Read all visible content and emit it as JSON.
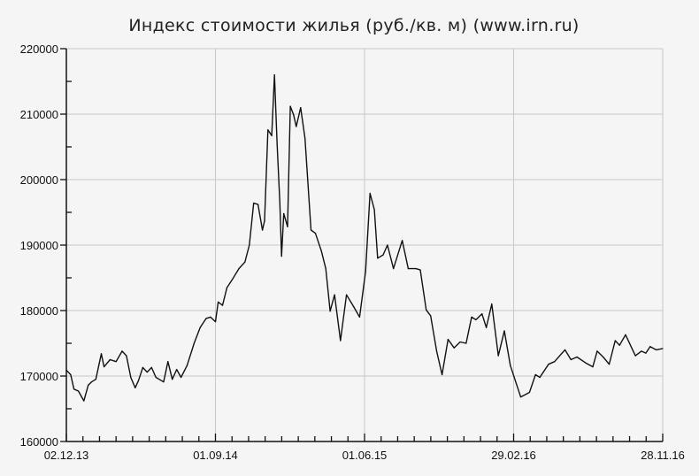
{
  "chart_data": {
    "type": "line",
    "title": "Индекс стоимости жилья (руб./кв. м) (www.irn.ru)",
    "xlabel": "",
    "ylabel": "",
    "ylim": [
      160000,
      220000
    ],
    "xlim": [
      "2013-12-02",
      "2016-11-28"
    ],
    "y_ticks": [
      "160000",
      "170000",
      "180000",
      "190000",
      "200000",
      "210000",
      "220000"
    ],
    "x_ticks": [
      {
        "date": "2013-12-02",
        "label": "02.12.13"
      },
      {
        "date": "2014-09-01",
        "label": "01.09.14"
      },
      {
        "date": "2015-06-01",
        "label": "01.06.15"
      },
      {
        "date": "2016-02-29",
        "label": "29.02.16"
      },
      {
        "date": "2016-11-28",
        "label": "28.11.16"
      }
    ],
    "grid": true,
    "line_color": "#111111",
    "grid_color": "#c8c8c8",
    "series": [
      {
        "points": [
          [
            "2013-12-02",
            170900
          ],
          [
            "2013-12-10",
            170200
          ],
          [
            "2013-12-16",
            168000
          ],
          [
            "2013-12-24",
            167700
          ],
          [
            "2014-01-03",
            166200
          ],
          [
            "2014-01-11",
            168600
          ],
          [
            "2014-01-17",
            169100
          ],
          [
            "2014-01-25",
            169500
          ],
          [
            "2014-02-04",
            173400
          ],
          [
            "2014-02-09",
            171400
          ],
          [
            "2014-02-20",
            172500
          ],
          [
            "2014-03-03",
            172200
          ],
          [
            "2014-03-14",
            173800
          ],
          [
            "2014-03-22",
            173100
          ],
          [
            "2014-03-30",
            169800
          ],
          [
            "2014-04-07",
            168200
          ],
          [
            "2014-04-13",
            169300
          ],
          [
            "2014-04-21",
            171300
          ],
          [
            "2014-04-29",
            170600
          ],
          [
            "2014-05-07",
            171300
          ],
          [
            "2014-05-15",
            169800
          ],
          [
            "2014-05-29",
            169100
          ],
          [
            "2014-06-06",
            172200
          ],
          [
            "2014-06-14",
            169500
          ],
          [
            "2014-06-22",
            171000
          ],
          [
            "2014-06-30",
            169800
          ],
          [
            "2014-07-11",
            171600
          ],
          [
            "2014-07-24",
            175000
          ],
          [
            "2014-08-04",
            177400
          ],
          [
            "2014-08-15",
            178800
          ],
          [
            "2014-08-23",
            179000
          ],
          [
            "2014-09-01",
            178300
          ],
          [
            "2014-09-06",
            181300
          ],
          [
            "2014-09-14",
            180800
          ],
          [
            "2014-09-22",
            183500
          ],
          [
            "2014-10-03",
            184900
          ],
          [
            "2014-10-14",
            186400
          ],
          [
            "2014-10-25",
            187400
          ],
          [
            "2014-11-02",
            190000
          ],
          [
            "2014-11-10",
            196400
          ],
          [
            "2014-11-18",
            196200
          ],
          [
            "2014-11-26",
            192300
          ],
          [
            "2014-11-30",
            193700
          ],
          [
            "2014-12-06",
            207600
          ],
          [
            "2014-12-13",
            206700
          ],
          [
            "2014-12-18",
            216000
          ],
          [
            "2014-12-23",
            205400
          ],
          [
            "2014-12-28",
            196400
          ],
          [
            "2014-12-31",
            188300
          ],
          [
            "2015-01-04",
            194800
          ],
          [
            "2015-01-11",
            192800
          ],
          [
            "2015-01-16",
            211200
          ],
          [
            "2015-01-22",
            209900
          ],
          [
            "2015-01-27",
            208100
          ],
          [
            "2015-02-04",
            211000
          ],
          [
            "2015-02-12",
            206300
          ],
          [
            "2015-02-23",
            192300
          ],
          [
            "2015-03-03",
            191800
          ],
          [
            "2015-03-14",
            189100
          ],
          [
            "2015-03-22",
            186400
          ],
          [
            "2015-03-30",
            179900
          ],
          [
            "2015-04-07",
            182400
          ],
          [
            "2015-04-18",
            175400
          ],
          [
            "2015-04-29",
            182400
          ],
          [
            "2015-05-12",
            180600
          ],
          [
            "2015-05-23",
            179000
          ],
          [
            "2015-06-03",
            186000
          ],
          [
            "2015-06-11",
            197900
          ],
          [
            "2015-06-19",
            195400
          ],
          [
            "2015-06-25",
            188000
          ],
          [
            "2015-07-05",
            188500
          ],
          [
            "2015-07-13",
            190000
          ],
          [
            "2015-07-24",
            186400
          ],
          [
            "2015-08-09",
            190700
          ],
          [
            "2015-08-20",
            186400
          ],
          [
            "2015-09-03",
            186400
          ],
          [
            "2015-09-11",
            186200
          ],
          [
            "2015-09-22",
            180100
          ],
          [
            "2015-09-30",
            179200
          ],
          [
            "2015-10-11",
            173800
          ],
          [
            "2015-10-21",
            170200
          ],
          [
            "2015-11-01",
            175600
          ],
          [
            "2015-11-12",
            174300
          ],
          [
            "2015-11-23",
            175200
          ],
          [
            "2015-12-04",
            175000
          ],
          [
            "2015-12-14",
            179000
          ],
          [
            "2015-12-22",
            178600
          ],
          [
            "2016-01-02",
            179500
          ],
          [
            "2016-01-10",
            177400
          ],
          [
            "2016-01-20",
            181000
          ],
          [
            "2016-02-01",
            173100
          ],
          [
            "2016-02-12",
            176900
          ],
          [
            "2016-02-23",
            171600
          ],
          [
            "2016-03-13",
            166800
          ],
          [
            "2016-03-29",
            167500
          ],
          [
            "2016-04-09",
            170200
          ],
          [
            "2016-04-17",
            169800
          ],
          [
            "2016-05-03",
            171800
          ],
          [
            "2016-05-14",
            172200
          ],
          [
            "2016-06-02",
            174000
          ],
          [
            "2016-06-13",
            172500
          ],
          [
            "2016-06-24",
            172900
          ],
          [
            "2016-07-10",
            172000
          ],
          [
            "2016-07-23",
            171400
          ],
          [
            "2016-07-31",
            173800
          ],
          [
            "2016-08-11",
            172900
          ],
          [
            "2016-08-22",
            171800
          ],
          [
            "2016-09-02",
            175400
          ],
          [
            "2016-09-10",
            174700
          ],
          [
            "2016-09-21",
            176300
          ],
          [
            "2016-10-09",
            173100
          ],
          [
            "2016-10-20",
            173800
          ],
          [
            "2016-10-28",
            173500
          ],
          [
            "2016-11-05",
            174500
          ],
          [
            "2016-11-16",
            174000
          ],
          [
            "2016-11-28",
            174200
          ]
        ]
      }
    ]
  }
}
